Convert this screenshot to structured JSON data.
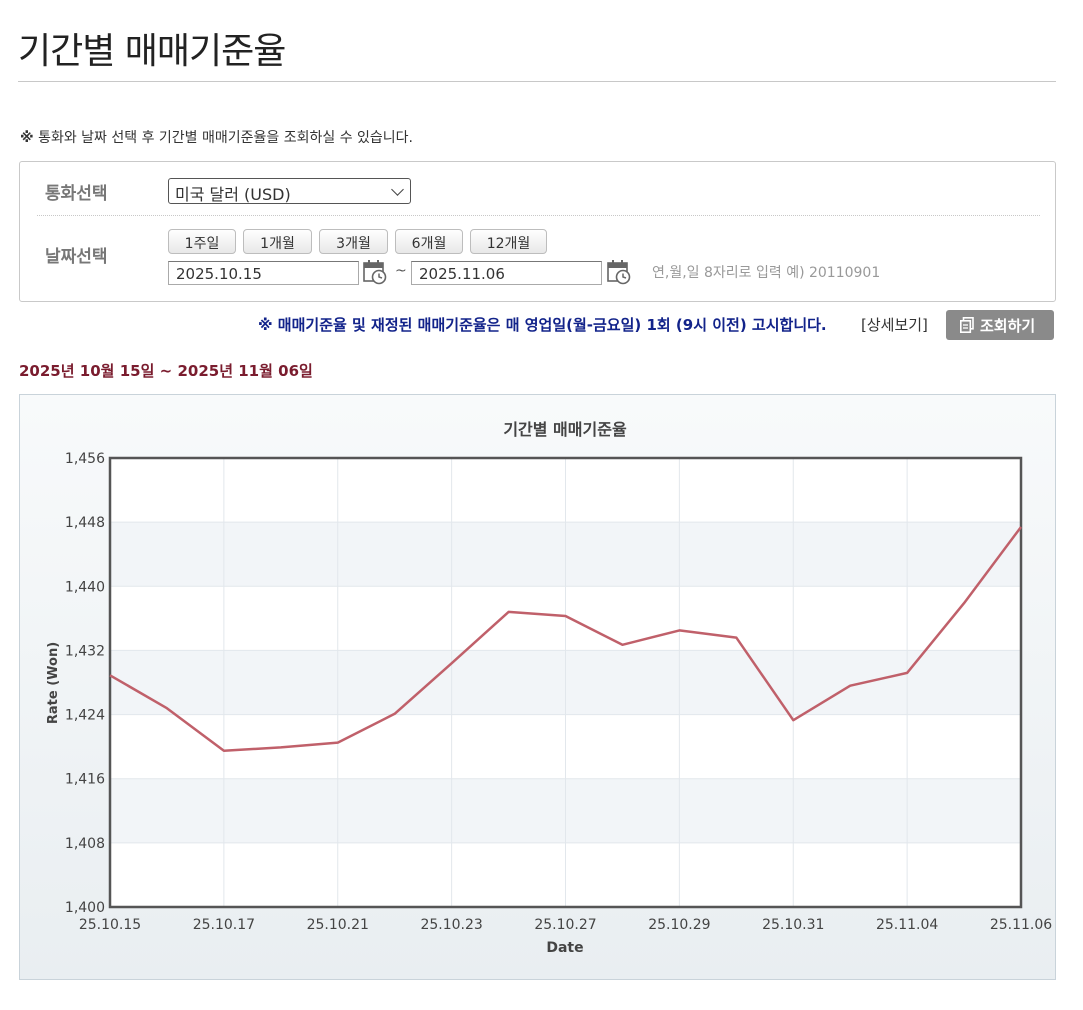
{
  "page": {
    "title": "기간별 매매기준율",
    "notice_mark": "※",
    "notice_text": "통화와 날짜 선택 후 기간별 매매기준율을 조회하실 수 있습니다."
  },
  "search": {
    "currency_label": "통화선택",
    "currency_value": "미국 달러 (USD)",
    "date_label": "날짜선택",
    "period_buttons": [
      "1주일",
      "1개월",
      "3개월",
      "6개월",
      "12개월"
    ],
    "start_date": "2025.10.15",
    "end_date": "2025.11.06",
    "tilde": "~",
    "date_hint": "연,월,일 8자리로 입력 예) 20110901",
    "calendar_icon": "calendar-clock-icon"
  },
  "announce": {
    "text": "※ 매매기준율 및 재정된 매매기준율은 매 영업일(월-금요일) 1회 (9시 이전) 고시합니다.",
    "detail_link": "[상세보기]",
    "search_button": "조회하기",
    "search_icon": "document-icon"
  },
  "range": {
    "y1": "2025",
    "u_year": "년",
    "m1": "10",
    "u_month": "월",
    "d1": "15",
    "u_day": "일",
    "sep": "~",
    "y2": "2025",
    "m2": "11",
    "d2": "06"
  },
  "chart_data": {
    "type": "line",
    "title": "기간별 매매기준율",
    "xlabel": "Date",
    "ylabel": "Rate (Won)",
    "ylim": [
      1400,
      1456
    ],
    "yticks": [
      1400,
      1408,
      1416,
      1424,
      1432,
      1440,
      1448,
      1456
    ],
    "ytick_labels": [
      "1,400",
      "1,408",
      "1,416",
      "1,424",
      "1,432",
      "1,440",
      "1,448",
      "1,456"
    ],
    "xtick_labels": [
      "25.10.15",
      "25.10.17",
      "25.10.21",
      "25.10.23",
      "25.10.27",
      "25.10.29",
      "25.10.31",
      "25.11.04",
      "25.11.06"
    ],
    "xtick_index": [
      0,
      2,
      4,
      6,
      8,
      10,
      12,
      14,
      16
    ],
    "grid": true,
    "line_color": "#c0606a",
    "x": [
      "25.10.15",
      "25.10.16",
      "25.10.17",
      "25.10.20",
      "25.10.21",
      "25.10.22",
      "25.10.23",
      "25.10.24",
      "25.10.27",
      "25.10.28",
      "25.10.29",
      "25.10.30",
      "25.10.31",
      "25.11.03",
      "25.11.04",
      "25.11.05",
      "25.11.06"
    ],
    "values": [
      1428.9,
      1424.8,
      1419.5,
      1419.9,
      1420.5,
      1424.1,
      1430.4,
      1436.8,
      1436.3,
      1432.7,
      1434.5,
      1433.6,
      1423.3,
      1427.6,
      1429.2,
      1437.9,
      1447.4
    ]
  }
}
